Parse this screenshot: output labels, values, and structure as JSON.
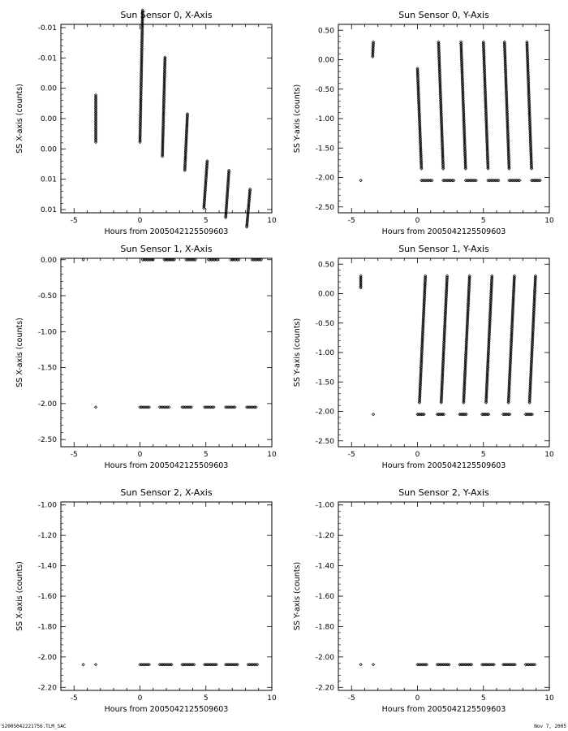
{
  "footer": {
    "left": "S2005042221756.TLM_SAC",
    "right": "Nov  7, 2005"
  },
  "chart_data": [
    {
      "type": "scatter",
      "title": "Sun Sensor 0, X-Axis",
      "xlabel": "Hours from 2005042125509603",
      "ylabel": "SS X-axis (counts)",
      "xlim": [
        -6,
        10
      ],
      "ylim": [
        -0.01,
        0.01
      ],
      "xticks": [
        "-5",
        "0",
        "5",
        "10"
      ],
      "yticks": [
        "-0.01",
        "-0.01",
        "0.00",
        "0.00",
        "0.00",
        "0.01",
        "0.01"
      ],
      "marker": "diamond",
      "segments": [
        {
          "x": [
            -3.35,
            -3.35
          ],
          "y": [
            -0.0025,
            0.0025
          ]
        },
        {
          "x": [
            0.0,
            0.2
          ],
          "y": [
            -0.0025,
            0.0115
          ]
        },
        {
          "x": [
            1.7,
            1.9
          ],
          "y": [
            -0.004,
            0.0065
          ]
        },
        {
          "x": [
            3.4,
            3.6
          ],
          "y": [
            -0.0055,
            0.0005
          ]
        },
        {
          "x": [
            4.85,
            5.1
          ],
          "y": [
            -0.0095,
            -0.0045
          ]
        },
        {
          "x": [
            6.5,
            6.75
          ],
          "y": [
            -0.0105,
            -0.0055
          ]
        },
        {
          "x": [
            8.1,
            8.35
          ],
          "y": [
            -0.0115,
            -0.0075
          ]
        }
      ]
    },
    {
      "type": "scatter",
      "title": "Sun Sensor 0, Y-Axis",
      "xlabel": "Hours from 2005042125509603",
      "ylabel": "SS Y-axis (counts)",
      "xlim": [
        -6,
        10
      ],
      "ylim": [
        -2.6,
        0.6
      ],
      "xticks": [
        "-5",
        "0",
        "5",
        "10"
      ],
      "yticks": [
        "0.50",
        "0.00",
        "-0.50",
        "-1.00",
        "-1.50",
        "-2.00",
        "-2.50"
      ],
      "marker": "diamond",
      "points": [
        {
          "x": -4.3,
          "y": -2.05
        }
      ],
      "segments": [
        {
          "x": [
            -3.4,
            -3.35
          ],
          "y": [
            0.05,
            0.3
          ]
        },
        {
          "x": [
            0.0,
            0.3
          ],
          "y": [
            -0.15,
            -1.85
          ]
        },
        {
          "x": [
            1.6,
            1.95
          ],
          "y": [
            0.3,
            -1.85
          ]
        },
        {
          "x": [
            3.3,
            3.65
          ],
          "y": [
            0.3,
            -1.85
          ]
        },
        {
          "x": [
            5.0,
            5.35
          ],
          "y": [
            0.3,
            -1.85
          ]
        },
        {
          "x": [
            6.6,
            6.95
          ],
          "y": [
            0.3,
            -1.85
          ]
        },
        {
          "x": [
            8.3,
            8.65
          ],
          "y": [
            0.3,
            -1.85
          ]
        },
        {
          "x": [
            0.3,
            1.1
          ],
          "y": [
            -2.05,
            -2.05
          ]
        },
        {
          "x": [
            1.95,
            2.75
          ],
          "y": [
            -2.05,
            -2.05
          ]
        },
        {
          "x": [
            3.65,
            4.45
          ],
          "y": [
            -2.05,
            -2.05
          ]
        },
        {
          "x": [
            5.35,
            6.15
          ],
          "y": [
            -2.05,
            -2.05
          ]
        },
        {
          "x": [
            6.95,
            7.75
          ],
          "y": [
            -2.05,
            -2.05
          ]
        },
        {
          "x": [
            8.65,
            9.3
          ],
          "y": [
            -2.05,
            -2.05
          ]
        }
      ]
    },
    {
      "type": "scatter",
      "title": "Sun Sensor 1, X-Axis",
      "xlabel": "Hours from 2005042125509603",
      "ylabel": "SS X-axis (counts)",
      "xlim": [
        -6,
        10
      ],
      "ylim": [
        -2.6,
        0.02
      ],
      "xticks": [
        "-5",
        "0",
        "5",
        "10"
      ],
      "yticks": [
        "0.00",
        "-0.50",
        "-1.00",
        "-1.50",
        "-2.00",
        "-2.50"
      ],
      "marker": "diamond",
      "points": [
        {
          "x": -4.3,
          "y": 0.0
        },
        {
          "x": -3.35,
          "y": -2.05
        }
      ],
      "segments": [
        {
          "x": [
            0.2,
            1.0
          ],
          "y": [
            0.0,
            0.0
          ]
        },
        {
          "x": [
            1.85,
            2.6
          ],
          "y": [
            0.0,
            0.0
          ]
        },
        {
          "x": [
            3.5,
            4.2
          ],
          "y": [
            0.0,
            0.0
          ]
        },
        {
          "x": [
            5.2,
            5.9
          ],
          "y": [
            0.0,
            0.0
          ]
        },
        {
          "x": [
            6.9,
            7.5
          ],
          "y": [
            0.0,
            0.0
          ]
        },
        {
          "x": [
            8.5,
            9.2
          ],
          "y": [
            0.0,
            0.0
          ]
        },
        {
          "x": [
            0.0,
            0.7
          ],
          "y": [
            -2.05,
            -2.05
          ]
        },
        {
          "x": [
            1.5,
            2.2
          ],
          "y": [
            -2.05,
            -2.05
          ]
        },
        {
          "x": [
            3.2,
            3.9
          ],
          "y": [
            -2.05,
            -2.05
          ]
        },
        {
          "x": [
            4.9,
            5.6
          ],
          "y": [
            -2.05,
            -2.05
          ]
        },
        {
          "x": [
            6.5,
            7.2
          ],
          "y": [
            -2.05,
            -2.05
          ]
        },
        {
          "x": [
            8.1,
            8.8
          ],
          "y": [
            -2.05,
            -2.05
          ]
        }
      ]
    },
    {
      "type": "scatter",
      "title": "Sun Sensor 1, Y-Axis",
      "xlabel": "Hours from 2005042125509603",
      "ylabel": "SS Y-axis (counts)",
      "xlim": [
        -6,
        10
      ],
      "ylim": [
        -2.6,
        0.6
      ],
      "xticks": [
        "-5",
        "0",
        "5",
        "10"
      ],
      "yticks": [
        "0.50",
        "0.00",
        "-0.50",
        "-1.00",
        "-1.50",
        "-2.00",
        "-2.50"
      ],
      "marker": "diamond",
      "points": [
        {
          "x": -3.35,
          "y": -2.05
        }
      ],
      "segments": [
        {
          "x": [
            -4.3,
            -4.3
          ],
          "y": [
            0.1,
            0.3
          ]
        },
        {
          "x": [
            0.15,
            0.6
          ],
          "y": [
            -1.85,
            0.3
          ]
        },
        {
          "x": [
            1.8,
            2.25
          ],
          "y": [
            -1.85,
            0.3
          ]
        },
        {
          "x": [
            3.5,
            3.95
          ],
          "y": [
            -1.85,
            0.3
          ]
        },
        {
          "x": [
            5.2,
            5.65
          ],
          "y": [
            -1.85,
            0.3
          ]
        },
        {
          "x": [
            6.9,
            7.35
          ],
          "y": [
            -1.85,
            0.3
          ]
        },
        {
          "x": [
            8.5,
            8.95
          ],
          "y": [
            -1.85,
            0.3
          ]
        },
        {
          "x": [
            0.0,
            0.5
          ],
          "y": [
            -2.05,
            -2.05
          ]
        },
        {
          "x": [
            1.5,
            2.0
          ],
          "y": [
            -2.05,
            -2.05
          ]
        },
        {
          "x": [
            3.2,
            3.7
          ],
          "y": [
            -2.05,
            -2.05
          ]
        },
        {
          "x": [
            4.9,
            5.4
          ],
          "y": [
            -2.05,
            -2.05
          ]
        },
        {
          "x": [
            6.5,
            7.0
          ],
          "y": [
            -2.05,
            -2.05
          ]
        },
        {
          "x": [
            8.2,
            8.7
          ],
          "y": [
            -2.05,
            -2.05
          ]
        }
      ]
    },
    {
      "type": "scatter",
      "title": "Sun Sensor 2, X-Axis",
      "xlabel": "Hours from 2005042125509603",
      "ylabel": "SS X-axis (counts)",
      "xlim": [
        -6,
        10
      ],
      "ylim": [
        -2.22,
        -0.98
      ],
      "xticks": [
        "-5",
        "0",
        "5",
        "10"
      ],
      "yticks": [
        "-1.00",
        "-1.20",
        "-1.40",
        "-1.60",
        "-1.80",
        "-2.00",
        "-2.20"
      ],
      "marker": "diamond",
      "points": [
        {
          "x": -4.3,
          "y": -2.05
        },
        {
          "x": -3.35,
          "y": -2.05
        }
      ],
      "segments": [
        {
          "x": [
            0.0,
            0.7
          ],
          "y": [
            -2.05,
            -2.05
          ]
        },
        {
          "x": [
            1.5,
            2.4
          ],
          "y": [
            -2.05,
            -2.05
          ]
        },
        {
          "x": [
            3.2,
            4.1
          ],
          "y": [
            -2.05,
            -2.05
          ]
        },
        {
          "x": [
            4.9,
            5.8
          ],
          "y": [
            -2.05,
            -2.05
          ]
        },
        {
          "x": [
            6.5,
            7.4
          ],
          "y": [
            -2.05,
            -2.05
          ]
        },
        {
          "x": [
            8.2,
            8.9
          ],
          "y": [
            -2.05,
            -2.05
          ]
        }
      ]
    },
    {
      "type": "scatter",
      "title": "Sun Sensor 2, Y-Axis",
      "xlabel": "Hours from 2005042125509603",
      "ylabel": "SS Y-axis (counts)",
      "xlim": [
        -6,
        10
      ],
      "ylim": [
        -2.22,
        -0.98
      ],
      "xticks": [
        "-5",
        "0",
        "5",
        "10"
      ],
      "yticks": [
        "-1.00",
        "-1.20",
        "-1.40",
        "-1.60",
        "-1.80",
        "-2.00",
        "-2.20"
      ],
      "marker": "diamond",
      "points": [
        {
          "x": -4.3,
          "y": -2.05
        },
        {
          "x": -3.35,
          "y": -2.05
        }
      ],
      "segments": [
        {
          "x": [
            0.0,
            0.7
          ],
          "y": [
            -2.05,
            -2.05
          ]
        },
        {
          "x": [
            1.5,
            2.4
          ],
          "y": [
            -2.05,
            -2.05
          ]
        },
        {
          "x": [
            3.2,
            4.1
          ],
          "y": [
            -2.05,
            -2.05
          ]
        },
        {
          "x": [
            4.9,
            5.8
          ],
          "y": [
            -2.05,
            -2.05
          ]
        },
        {
          "x": [
            6.5,
            7.4
          ],
          "y": [
            -2.05,
            -2.05
          ]
        },
        {
          "x": [
            8.2,
            8.9
          ],
          "y": [
            -2.05,
            -2.05
          ]
        }
      ]
    }
  ]
}
